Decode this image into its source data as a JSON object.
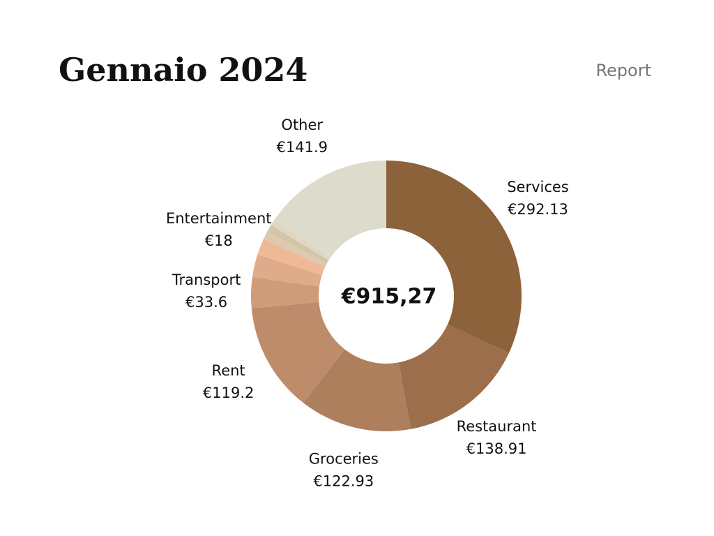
{
  "chart_data": {
    "type": "donut",
    "title": "Gennaio 2024",
    "subtitle": "Report",
    "center_label": "€915,27",
    "categories": [
      "Services",
      "Restaurant",
      "Groceries",
      "Rent",
      "Transport",
      null,
      "Entertainment",
      null,
      null,
      null,
      "Other"
    ],
    "values": [
      292.13,
      138.91,
      122.93,
      119.2,
      33.6,
      25,
      18,
      9,
      8,
      6.6,
      141.9
    ],
    "value_labels": [
      "€292.13",
      "€138.91",
      "€122.93",
      "€119.2",
      "€33.6",
      null,
      "€18",
      null,
      null,
      null,
      "€141.9"
    ],
    "colors": [
      "#8b6239",
      "#9c6e4c",
      "#ad7f5d",
      "#be8b6b",
      "#cf9c79",
      "#dfab8a",
      "#f0b996",
      "#dcc9b0",
      "#d4c4a8",
      "#e2d6c2",
      "#dddbcb"
    ]
  }
}
